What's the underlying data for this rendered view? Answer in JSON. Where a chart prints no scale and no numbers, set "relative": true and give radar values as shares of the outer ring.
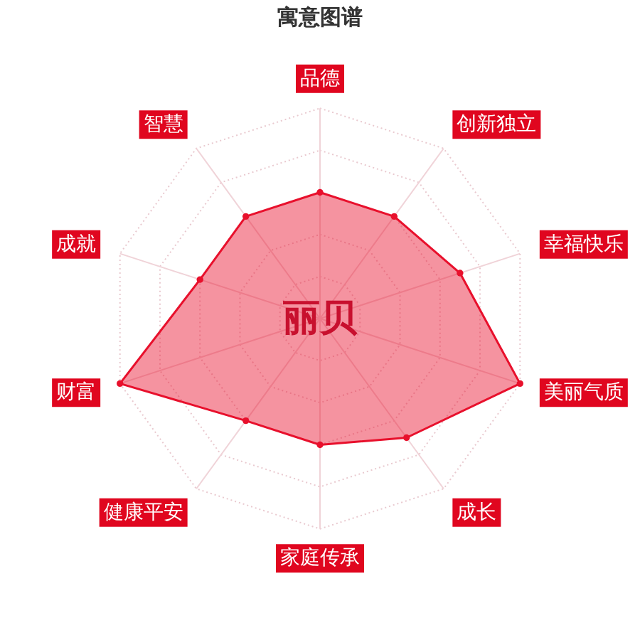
{
  "chart_data": {
    "type": "radar",
    "title": "寓意图谱",
    "relative": true,
    "categories": [
      "品德",
      "创新独立",
      "幸福快乐",
      "美丽气质",
      "成长",
      "家庭传承",
      "健康平安",
      "财富",
      "成就",
      "智慧"
    ],
    "series": [
      {
        "color": "#e8102c",
        "values": [
          0.6,
          0.6,
          0.7,
          1,
          0.7,
          0.6,
          0.6,
          1,
          0.6,
          0.6
        ]
      }
    ],
    "annotations": [
      "丽贝"
    ],
    "grid": true,
    "marker": "circle"
  }
}
